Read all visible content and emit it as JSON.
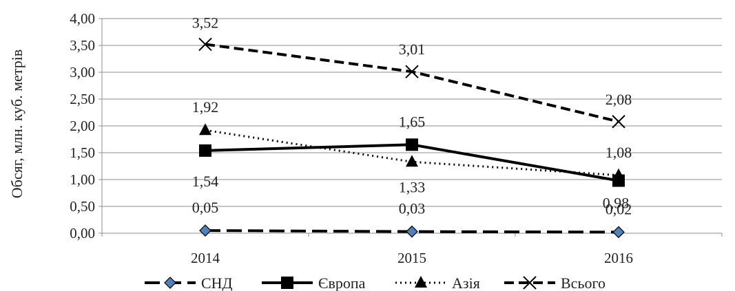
{
  "chart_data": {
    "type": "line",
    "title": "",
    "xlabel": "",
    "ylabel": "Обсяг, млн. куб. метрів",
    "categories": [
      "2014",
      "2015",
      "2016"
    ],
    "y_ticks": [
      "0,00",
      "0,50",
      "1,00",
      "1,50",
      "2,00",
      "2,50",
      "3,00",
      "3,50",
      "4,00"
    ],
    "ylim": [
      0,
      4
    ],
    "grid": true,
    "legend_position": "bottom",
    "series": [
      {
        "name": "СНД",
        "values": [
          0.05,
          0.03,
          0.02
        ],
        "labels": [
          "0,05",
          "0,03",
          "0,02"
        ],
        "color": "#000000",
        "marker_fill": "#4f81bd",
        "marker": "diamond",
        "dash": "long-dash"
      },
      {
        "name": "Європа",
        "values": [
          1.54,
          1.65,
          0.98
        ],
        "labels": [
          "1,54",
          "1,65",
          "0,98"
        ],
        "color": "#000000",
        "marker": "square",
        "dash": "solid"
      },
      {
        "name": "Азія",
        "values": [
          1.92,
          1.33,
          1.08
        ],
        "labels": [
          "1,92",
          "1,33",
          "1,08"
        ],
        "color": "#000000",
        "marker": "triangle",
        "dash": "dotted"
      },
      {
        "name": "Всього",
        "values": [
          3.52,
          3.01,
          2.08
        ],
        "labels": [
          "3,52",
          "3,01",
          "2,08"
        ],
        "color": "#000000",
        "marker": "x",
        "dash": "dashed"
      }
    ]
  }
}
